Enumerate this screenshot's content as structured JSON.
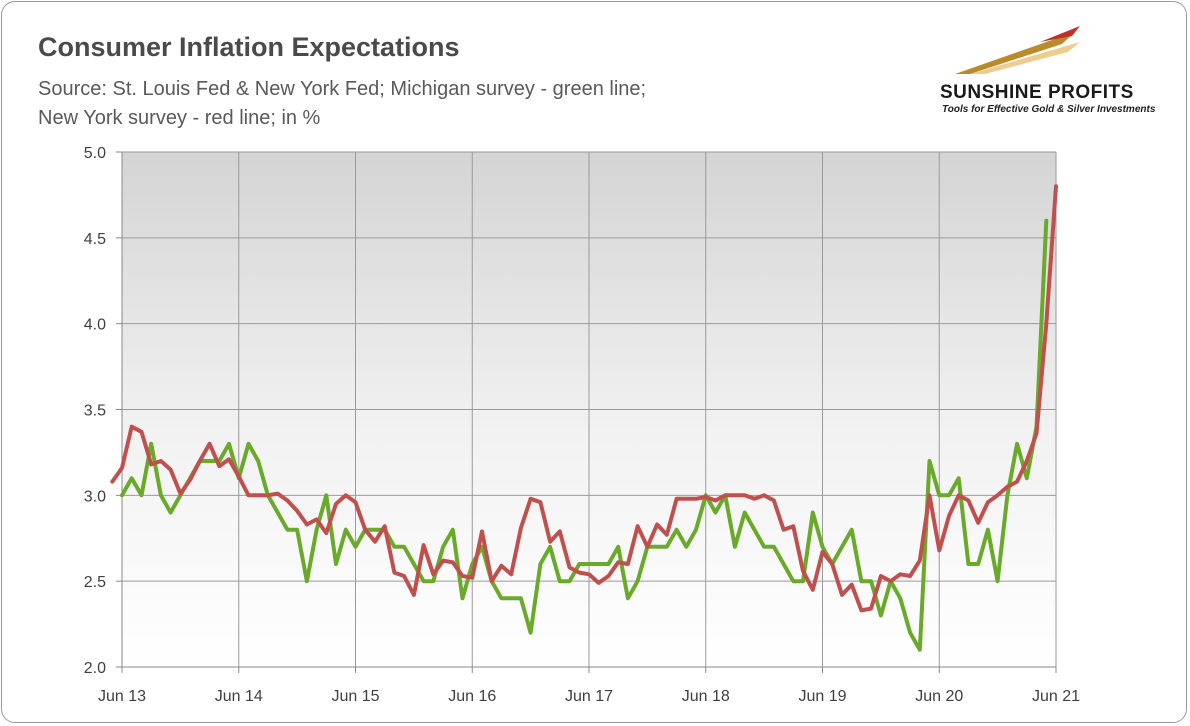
{
  "title": "Consumer Inflation Expectations",
  "subtitle_lines": [
    "Source: St. Louis Fed & New York Fed; Michigan survey - green line;",
    "New York survey - red line; in %"
  ],
  "logo": {
    "name": "SUNSHINE PROFITS",
    "tagline": "Tools for Effective Gold & Silver Investments"
  },
  "chart_data": {
    "type": "line",
    "title": "Consumer Inflation Expectations",
    "xlabel": "",
    "ylabel": "",
    "ylim": [
      2.0,
      5.0
    ],
    "yticks": [
      "5.0",
      "4.5",
      "4.0",
      "3.5",
      "3.0",
      "2.5",
      "2.0"
    ],
    "x_tick_labels": [
      "Jun 13",
      "Jun 14",
      "Jun 15",
      "Jun 16",
      "Jun 17",
      "Jun 18",
      "Jun 19",
      "Jun 20",
      "Jun 21"
    ],
    "x_start": "Jun 13",
    "x_end": "Jun 21",
    "grid": true,
    "series": [
      {
        "name": "Michigan survey",
        "color": "#6aaa2a",
        "values": [
          3.0,
          3.1,
          3.0,
          3.3,
          3.0,
          2.9,
          3.0,
          3.1,
          3.2,
          3.2,
          3.2,
          3.3,
          3.1,
          3.3,
          3.2,
          3.0,
          2.9,
          2.8,
          2.8,
          2.5,
          2.8,
          3.0,
          2.6,
          2.8,
          2.7,
          2.8,
          2.8,
          2.8,
          2.7,
          2.7,
          2.6,
          2.5,
          2.5,
          2.7,
          2.8,
          2.4,
          2.6,
          2.7,
          2.5,
          2.4,
          2.4,
          2.4,
          2.2,
          2.6,
          2.7,
          2.5,
          2.5,
          2.6,
          2.6,
          2.6,
          2.6,
          2.7,
          2.4,
          2.5,
          2.7,
          2.7,
          2.7,
          2.8,
          2.7,
          2.8,
          3.0,
          2.9,
          3.0,
          2.7,
          2.9,
          2.8,
          2.7,
          2.7,
          2.6,
          2.5,
          2.5,
          2.9,
          2.7,
          2.6,
          2.7,
          2.8,
          2.5,
          2.5,
          2.3,
          2.5,
          2.4,
          2.2,
          2.1,
          3.2,
          3.0,
          3.0,
          3.1,
          2.6,
          2.6,
          2.8,
          2.5,
          3.0,
          3.3,
          3.1,
          3.4,
          4.6
        ]
      },
      {
        "name": "New York survey",
        "color": "#c0504d",
        "values": [
          3.08,
          3.16,
          3.4,
          3.37,
          3.18,
          3.2,
          3.15,
          3.01,
          3.09,
          3.2,
          3.3,
          3.17,
          3.21,
          3.11,
          3.0,
          3.0,
          3.0,
          3.01,
          2.97,
          2.91,
          2.83,
          2.86,
          2.78,
          2.95,
          3.0,
          2.96,
          2.8,
          2.73,
          2.82,
          2.55,
          2.53,
          2.42,
          2.71,
          2.54,
          2.62,
          2.61,
          2.53,
          2.52,
          2.79,
          2.5,
          2.59,
          2.54,
          2.81,
          2.98,
          2.96,
          2.73,
          2.79,
          2.58,
          2.55,
          2.54,
          2.49,
          2.53,
          2.61,
          2.6,
          2.82,
          2.7,
          2.83,
          2.77,
          2.98,
          2.98,
          2.98,
          2.99,
          2.97,
          3.0,
          3.0,
          3.0,
          2.98,
          3.0,
          2.97,
          2.8,
          2.82,
          2.56,
          2.45,
          2.67,
          2.6,
          2.42,
          2.48,
          2.33,
          2.34,
          2.53,
          2.5,
          2.54,
          2.53,
          2.62,
          3.0,
          2.68,
          2.88,
          3.0,
          2.97,
          2.84,
          2.96,
          3.0,
          3.05,
          3.08,
          3.2,
          3.36,
          4.0,
          4.8
        ]
      }
    ]
  }
}
